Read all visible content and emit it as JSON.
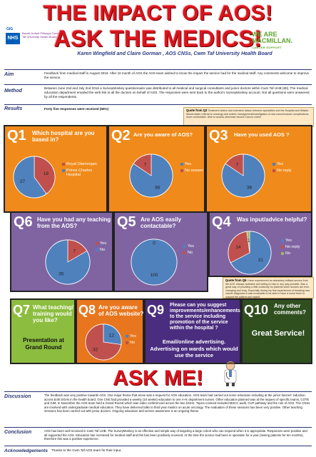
{
  "header": {
    "title_line1": "THE IMPACT OF AOS!",
    "title_line2": "ASK THE MEDICS!",
    "authors": "Karen Wingfield and Claire Gorman , AOS CNSs, Cwm Taf University Health Board",
    "nhs_gig": "GIG",
    "nhs_badge": "NHS",
    "nhs_org": "Bwrdd Iechyd Prifysgol Cwm Taf University Health Board",
    "mac_line1": "WE ARE",
    "mac_line2": "MACMILLAN.",
    "mac_line3": "CANCER SUPPORT"
  },
  "aim": {
    "label": "Aim",
    "text": "Feedback from medical staff in August 2016.  After 10 month of AOS the AOS team wished to know the impact the service had for the medical staff. Any comments welcome to improve the service."
  },
  "method": {
    "label": "Method",
    "text": "Between June 2nd and July 2nd 2016 a SurveyMonkey questionnaire was distributed to all medical and surgical consultants and junior doctors within Cwm Taf UHB (80). The medical education department emailed the web link to all the doctors on behalf of AOS. The responses were sent back to the author's SurveyMonkey account.  Not all questions were answered by all the respondents."
  },
  "results": {
    "label": "Results",
    "text": "Forty five responses were received (56%)"
  },
  "quote_q3": {
    "label": "Quote from Q3",
    "text": "Treatment advice and extensive liaison between specialties and the Hospital and Hillside. Allows faster referral to oncology and makes management/investigation of new cancer/cancer complications more comfortable. Able to access otherwise elusive Cancer notes!"
  },
  "quote_q6": {
    "label": "Quote from Q6",
    "text": "I have experienced an absolutely brilliant service from the AOS. Always available and willing to help in any way possible. Also a great way of providing a little continuity for patients when doctors are ever-changing and busy. Especially during my first experiences of breaking new cancer diagnoses it was invaluable to be able to have a nurse there to support the patient and myself."
  },
  "panels": {
    "q1": {
      "num": "Q1",
      "title": "Which hospital are you based in?"
    },
    "q2": {
      "num": "Q2",
      "title": "Are you aware of AOS?"
    },
    "q3": {
      "num": "Q3",
      "title": "Have you used AOS ?"
    },
    "q6": {
      "num": "Q6",
      "title": "Have you had any teaching  from the AOS?"
    },
    "q5": {
      "num": "Q5",
      "title": "Are  AOS  easily contactable?"
    },
    "q4": {
      "num": "Q4",
      "title": "Was input/advice helpful?"
    },
    "q7": {
      "num": "Q7",
      "title": "What teaching/ training would you like?",
      "answer": "Presentation at Grand Round"
    },
    "q8": {
      "num": "Q8",
      "title": "Are you aware of AOS website?"
    },
    "q9": {
      "num": "Q9",
      "title": "Please can you  suggest improvements/enhancements to the service including promotion of the service within the hospital ?",
      "answer": "Email/online advertising. Advertising  on  wards which would use the service"
    },
    "q10": {
      "num": "Q10",
      "title": "Any other comments?",
      "answer": "Great Service!"
    }
  },
  "charts": {
    "q1": {
      "type": "pie",
      "labels": [
        "Royal Glamorgan",
        "Prince Charles Hospital"
      ],
      "values": [
        18,
        27
      ],
      "colors": [
        "#c0504d",
        "#4f81bd"
      ]
    },
    "q2": {
      "type": "pie",
      "labels": [
        "Yes",
        "No answer"
      ],
      "values": [
        38,
        7
      ],
      "colors": [
        "#4f81bd",
        "#c0504d"
      ]
    },
    "q3": {
      "type": "pie",
      "labels": [
        "Yes",
        "No reply"
      ],
      "values": [
        38,
        7
      ],
      "colors": [
        "#4f81bd",
        "#c0504d"
      ]
    },
    "q6": {
      "type": "pie",
      "labels": [
        "Yes",
        "No"
      ],
      "values": [
        7,
        35
      ],
      "colors": [
        "#c0504d",
        "#4f81bd"
      ]
    },
    "q5": {
      "type": "pie",
      "labels": [
        "Yes",
        "No"
      ],
      "values": [
        100,
        0
      ],
      "colors": [
        "#4f81bd",
        "#c0504d"
      ]
    },
    "q4": {
      "type": "pie",
      "labels": [
        "Yes",
        "No reply",
        "No"
      ],
      "values": [
        31,
        14,
        1
      ],
      "colors": [
        "#4f81bd",
        "#c0504d",
        "#9bbb59"
      ]
    },
    "q8": {
      "type": "pie",
      "labels": [
        "Yes",
        "No"
      ],
      "values": [
        12,
        32
      ],
      "colors": [
        "#4f81bd",
        "#c0504d"
      ]
    }
  },
  "ask_me": "ASK ME!",
  "discussion": {
    "label": "Discussion",
    "text": "The feedback was very positive towards AOS. One major theme that arose was a request for AOS education. AOS team had carried out some education including at the junior doctors' induction across both DGHs in the health board. One CNS had provided a weekly (10 weeks) education to one A+E department nurses. Other education planned was at the request of specific teams, COTE and GIM. In November the AOS team held a Grand Round which was video conferenced across the two DGHs. Topics covered included MSCC audit, CUP pathway and the role of AOS. The CNSs are involved with undergraduate medical education. They have delivered talks to third year medics  on  acute oncology. The evaluation of these sessions has been very positive.  Other teaching sessions has been carried out with junior doctors.  Ongoing education and service awareness is an ongoing  theme"
  },
  "conclusion": {
    "label": "Conclusion",
    "text": "AOS has been well received in Cwm Taf UHB. The SurveyMonkey is an effective and simple way of targeting a large cohort who can respond when it is appropriate.  Responses were positive and all supported the AOS. Education has increased for medical staff and this has been positively  received. At the time the service had been in operation for a year (seeing patients for ten months), therefore this was a positive  experience."
  },
  "acknowledgements": {
    "label": "Acknowledgements",
    "text": "Thanks to the Cwm Taf AOS team for their input."
  }
}
